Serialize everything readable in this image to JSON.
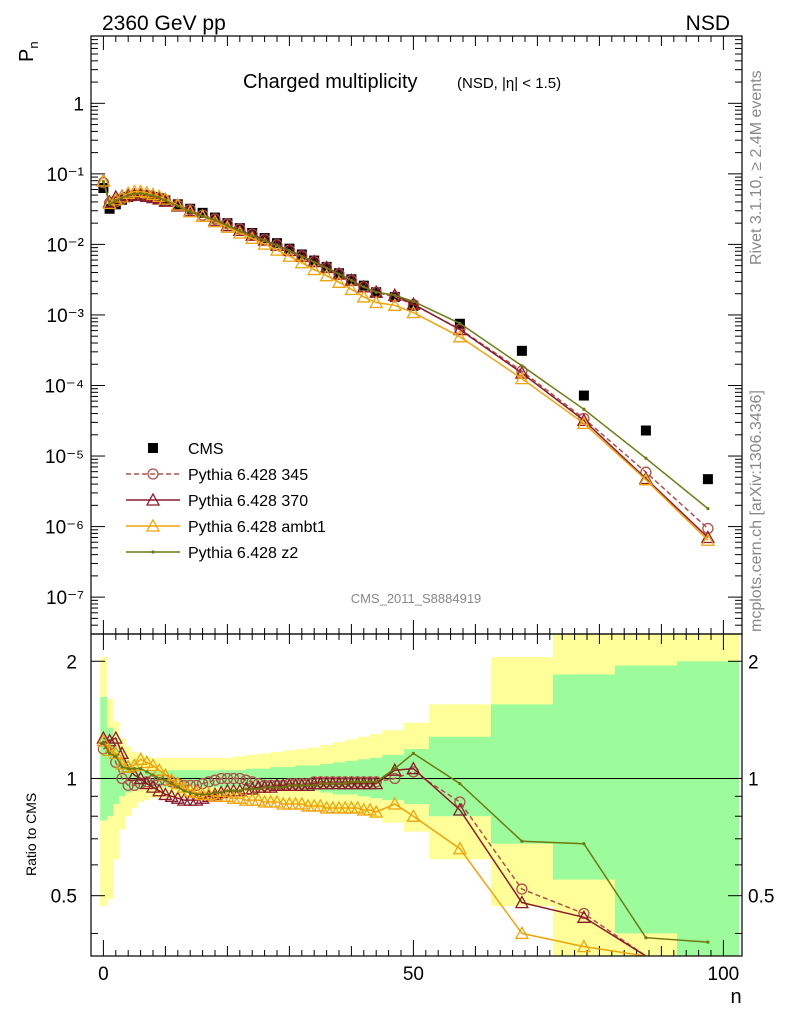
{
  "header": {
    "left": "2360 GeV pp",
    "right": "NSD"
  },
  "side_labels": {
    "rivet": "Rivet 3.1.10, ≥ 2.4M events",
    "mcplots": "mcplots.cern.ch [arXiv:1306.3436]"
  },
  "chart_data": [
    {
      "type": "scatter",
      "title": "Charged multiplicity",
      "subtitle": "(NSD, |η| < 1.5)",
      "analysis": "CMS_2011_S8884919",
      "ylabel": "P",
      "ylabel_sub": "n",
      "y_scale": "log",
      "xlim": [
        -2,
        103
      ],
      "ylim": [
        3e-08,
        9
      ],
      "y_ticks": [
        "10⁻⁷",
        "10⁻⁶",
        "10⁻⁵",
        "10⁻⁴",
        "10⁻³",
        "10⁻²",
        "10⁻¹",
        "1"
      ],
      "legend_position": "bottom-left",
      "series": [
        {
          "name": "CMS",
          "color": "#000000",
          "style": "square",
          "x": [
            0,
            1,
            2,
            3,
            4,
            5,
            6,
            7,
            8,
            9,
            10,
            12,
            14,
            16,
            18,
            20,
            22,
            24,
            26,
            28,
            30,
            32,
            34,
            36,
            38,
            40,
            42,
            44,
            47,
            50,
            57.5,
            67.5,
            77.5,
            87.5,
            97.5
          ],
          "y": [
            0.063,
            0.032,
            0.037,
            0.043,
            0.047,
            0.049,
            0.05,
            0.049,
            0.047,
            0.045,
            0.042,
            0.037,
            0.032,
            0.028,
            0.024,
            0.02,
            0.017,
            0.0145,
            0.0123,
            0.0104,
            0.0087,
            0.0072,
            0.0059,
            0.0048,
            0.0039,
            0.0032,
            0.0026,
            0.0021,
            0.0018,
            0.00135,
            0.00075,
            0.00031,
            7.2e-05,
            2.3e-05,
            4.7e-06
          ]
        },
        {
          "name": "Pythia 6.428 345",
          "color": "#b0504a",
          "style": "circle-dashed",
          "x": [
            0,
            1,
            2,
            3,
            4,
            5,
            6,
            7,
            8,
            9,
            10,
            12,
            14,
            16,
            18,
            20,
            22,
            24,
            26,
            28,
            30,
            32,
            34,
            36,
            38,
            40,
            42,
            44,
            47,
            50,
            57.5,
            67.5,
            77.5,
            87.5,
            97.5
          ],
          "y": [
            0.075,
            0.039,
            0.04,
            0.044,
            0.047,
            0.049,
            0.05,
            0.049,
            0.047,
            0.045,
            0.042,
            0.036,
            0.031,
            0.026,
            0.023,
            0.0195,
            0.0166,
            0.014,
            0.0118,
            0.0099,
            0.0083,
            0.0069,
            0.0057,
            0.0047,
            0.0038,
            0.0031,
            0.0025,
            0.0021,
            0.0018,
            0.0014,
            0.00063,
            0.00016,
            3.4e-05,
            5.9e-06,
            9.4e-07
          ]
        },
        {
          "name": "Pythia 6.428 370",
          "color": "#8b1a2b",
          "style": "triangle-solid",
          "x": [
            0,
            1,
            2,
            3,
            4,
            5,
            6,
            7,
            8,
            9,
            10,
            12,
            14,
            16,
            18,
            20,
            22,
            24,
            26,
            28,
            30,
            32,
            34,
            36,
            38,
            40,
            42,
            44,
            47,
            50,
            57.5,
            67.5,
            77.5,
            87.5,
            97.5
          ],
          "y": [
            0.08,
            0.04,
            0.047,
            0.048,
            0.05,
            0.05,
            0.05,
            0.048,
            0.046,
            0.044,
            0.041,
            0.035,
            0.03,
            0.025,
            0.022,
            0.0185,
            0.0158,
            0.0135,
            0.0115,
            0.0097,
            0.0082,
            0.0068,
            0.0057,
            0.0047,
            0.0038,
            0.0031,
            0.0025,
            0.0021,
            0.0019,
            0.00142,
            0.00062,
            0.00015,
            3.2e-05,
            4.8e-06,
            7e-07
          ]
        },
        {
          "name": "Pythia 6.428 ambt1",
          "color": "#f0a30a",
          "style": "triangle-solid",
          "x": [
            0,
            1,
            2,
            3,
            4,
            5,
            6,
            7,
            8,
            9,
            10,
            12,
            14,
            16,
            18,
            20,
            22,
            24,
            26,
            28,
            30,
            32,
            34,
            36,
            38,
            40,
            42,
            44,
            47,
            50,
            57.5,
            67.5,
            77.5,
            87.5,
            97.5
          ],
          "y": [
            0.079,
            0.038,
            0.043,
            0.047,
            0.053,
            0.056,
            0.056,
            0.054,
            0.051,
            0.048,
            0.044,
            0.036,
            0.029,
            0.025,
            0.021,
            0.0175,
            0.0145,
            0.0122,
            0.0101,
            0.0083,
            0.0068,
            0.0055,
            0.0044,
            0.0036,
            0.0029,
            0.0023,
            0.0018,
            0.0015,
            0.00137,
            0.00108,
            0.00049,
            0.000125,
            2.9e-05,
            4.6e-06,
            6.4e-07
          ]
        },
        {
          "name": "Pythia 6.428 z2",
          "color": "#6e7a10",
          "style": "dot",
          "x": [
            0,
            1,
            2,
            3,
            4,
            5,
            6,
            7,
            8,
            9,
            10,
            12,
            14,
            16,
            18,
            20,
            22,
            24,
            26,
            28,
            30,
            32,
            34,
            36,
            38,
            40,
            42,
            44,
            47,
            50,
            57.5,
            67.5,
            77.5,
            87.5,
            97.5
          ],
          "y": [
            0.078,
            0.037,
            0.042,
            0.046,
            0.05,
            0.052,
            0.053,
            0.051,
            0.049,
            0.046,
            0.042,
            0.035,
            0.029,
            0.025,
            0.022,
            0.0184,
            0.0155,
            0.0132,
            0.0113,
            0.0096,
            0.0081,
            0.0068,
            0.0056,
            0.0046,
            0.0038,
            0.0031,
            0.0025,
            0.0021,
            0.0019,
            0.00155,
            0.00076,
            0.00019,
            4.6e-05,
            9.3e-06,
            1.8e-06
          ]
        }
      ]
    },
    {
      "type": "line",
      "ylabel": "Ratio to CMS",
      "xlabel": "n",
      "xlim": [
        -2,
        103
      ],
      "ylim": [
        0.35,
        2.35
      ],
      "y_scale": "log",
      "x_ticks": [
        "0",
        "50",
        "100"
      ],
      "y_ticks": [
        "0.5",
        "1",
        "2"
      ],
      "reference_line": 1,
      "uncertainty_bands": {
        "edges": [
          -0.5,
          0.5,
          1.5,
          2.5,
          3.5,
          4.5,
          5.5,
          6.5,
          7.5,
          8.5,
          9.5,
          11,
          13,
          15,
          17,
          19,
          21,
          23,
          25,
          27,
          29,
          31,
          33,
          35,
          37,
          39,
          41,
          43,
          45,
          48.5,
          52.5,
          62.5,
          72.5,
          82.5,
          92.5,
          102.5
        ],
        "outer_low": [
          0.47,
          0.49,
          0.62,
          0.74,
          0.8,
          0.84,
          0.87,
          0.88,
          0.89,
          0.89,
          0.89,
          0.89,
          0.89,
          0.89,
          0.89,
          0.89,
          0.89,
          0.89,
          0.88,
          0.87,
          0.86,
          0.85,
          0.84,
          0.83,
          0.82,
          0.82,
          0.81,
          0.79,
          0.77,
          0.73,
          0.62,
          0.47,
          0.3,
          0.3,
          0.3
        ],
        "outer_high": [
          2.05,
          1.6,
          1.4,
          1.27,
          1.21,
          1.17,
          1.15,
          1.14,
          1.13,
          1.13,
          1.13,
          1.13,
          1.13,
          1.13,
          1.13,
          1.13,
          1.14,
          1.15,
          1.16,
          1.17,
          1.18,
          1.19,
          1.2,
          1.22,
          1.24,
          1.26,
          1.28,
          1.3,
          1.33,
          1.39,
          1.55,
          2.05,
          2.4,
          2.4,
          2.4
        ],
        "inner_low": [
          0.78,
          0.8,
          0.86,
          0.9,
          0.92,
          0.93,
          0.94,
          0.95,
          0.95,
          0.95,
          0.95,
          0.95,
          0.95,
          0.95,
          0.95,
          0.95,
          0.95,
          0.95,
          0.94,
          0.94,
          0.94,
          0.93,
          0.93,
          0.92,
          0.91,
          0.91,
          0.9,
          0.89,
          0.88,
          0.86,
          0.8,
          0.68,
          0.55,
          0.4,
          0.3
        ],
        "inner_high": [
          1.62,
          1.35,
          1.2,
          1.13,
          1.09,
          1.07,
          1.06,
          1.05,
          1.05,
          1.05,
          1.05,
          1.05,
          1.05,
          1.05,
          1.05,
          1.05,
          1.05,
          1.06,
          1.06,
          1.07,
          1.07,
          1.08,
          1.08,
          1.09,
          1.1,
          1.11,
          1.12,
          1.13,
          1.15,
          1.19,
          1.28,
          1.55,
          1.85,
          1.95,
          2.0
        ]
      },
      "series": [
        {
          "name": "Pythia 6.428 345",
          "color": "#b0504a",
          "style": "circle-dashed",
          "x": [
            0,
            1,
            2,
            3,
            4,
            5,
            6,
            7,
            8,
            9,
            10,
            11,
            12,
            13,
            14,
            15,
            16,
            17,
            18,
            19,
            20,
            21,
            22,
            23,
            24,
            25,
            26,
            27,
            28,
            29,
            30,
            31,
            32,
            33,
            34,
            35,
            36,
            37,
            38,
            39,
            40,
            41,
            42,
            43,
            44,
            47,
            50,
            57.5,
            67.5,
            77.5,
            87.5
          ],
          "y": [
            1.19,
            1.22,
            1.1,
            1.0,
            0.96,
            0.96,
            0.97,
            0.98,
            0.99,
            0.99,
            0.99,
            0.98,
            0.97,
            0.96,
            0.96,
            0.96,
            0.97,
            0.98,
            0.99,
            1.0,
            1.0,
            1.0,
            1.0,
            0.99,
            0.98,
            0.97,
            0.96,
            0.96,
            0.96,
            0.96,
            0.97,
            0.97,
            0.97,
            0.97,
            0.98,
            0.98,
            0.98,
            0.98,
            0.98,
            0.98,
            0.98,
            0.98,
            0.98,
            0.98,
            0.98,
            1.0,
            1.04,
            0.87,
            0.52,
            0.45,
            0.28
          ]
        },
        {
          "name": "Pythia 6.428 370",
          "color": "#8b1a2b",
          "style": "triangle-solid",
          "x": [
            0,
            1,
            2,
            3,
            4,
            5,
            6,
            7,
            8,
            9,
            10,
            11,
            12,
            13,
            14,
            15,
            16,
            17,
            18,
            19,
            20,
            21,
            22,
            23,
            24,
            25,
            26,
            27,
            28,
            29,
            30,
            31,
            32,
            33,
            34,
            35,
            36,
            37,
            38,
            39,
            40,
            41,
            42,
            43,
            44,
            47,
            50,
            57.5,
            67.5,
            77.5,
            87.5
          ],
          "y": [
            1.27,
            1.25,
            1.27,
            1.16,
            1.07,
            1.02,
            1.0,
            0.97,
            0.95,
            0.93,
            0.91,
            0.9,
            0.89,
            0.88,
            0.88,
            0.88,
            0.89,
            0.9,
            0.91,
            0.92,
            0.93,
            0.93,
            0.93,
            0.94,
            0.94,
            0.95,
            0.95,
            0.95,
            0.96,
            0.96,
            0.96,
            0.96,
            0.96,
            0.96,
            0.97,
            0.97,
            0.97,
            0.97,
            0.97,
            0.97,
            0.97,
            0.97,
            0.97,
            0.97,
            0.97,
            1.05,
            1.06,
            0.83,
            0.48,
            0.44,
            0.2
          ]
        },
        {
          "name": "Pythia 6.428 ambt1",
          "color": "#f0a30a",
          "style": "triangle-solid",
          "x": [
            0,
            1,
            2,
            3,
            4,
            5,
            6,
            7,
            8,
            9,
            10,
            11,
            12,
            13,
            14,
            15,
            16,
            17,
            18,
            19,
            20,
            21,
            22,
            23,
            24,
            25,
            26,
            27,
            28,
            29,
            30,
            31,
            32,
            33,
            34,
            35,
            36,
            37,
            38,
            39,
            40,
            41,
            42,
            43,
            44,
            47,
            50,
            57.5,
            67.5,
            77.5,
            87.5
          ],
          "y": [
            1.25,
            1.18,
            1.16,
            1.09,
            1.07,
            1.08,
            1.12,
            1.1,
            1.08,
            1.05,
            1.02,
            0.99,
            0.97,
            0.95,
            0.93,
            0.92,
            0.91,
            0.91,
            0.9,
            0.9,
            0.9,
            0.89,
            0.89,
            0.88,
            0.88,
            0.88,
            0.87,
            0.87,
            0.87,
            0.86,
            0.86,
            0.86,
            0.86,
            0.85,
            0.85,
            0.85,
            0.84,
            0.84,
            0.84,
            0.84,
            0.84,
            0.84,
            0.83,
            0.83,
            0.82,
            0.86,
            0.8,
            0.66,
            0.4,
            0.37,
            0.2
          ]
        },
        {
          "name": "Pythia 6.428 z2",
          "color": "#6e7a10",
          "style": "dot",
          "x": [
            0,
            1,
            2,
            3,
            4,
            5,
            6,
            7,
            8,
            9,
            10,
            11,
            12,
            13,
            14,
            15,
            16,
            17,
            18,
            19,
            20,
            21,
            22,
            23,
            24,
            25,
            26,
            27,
            28,
            29,
            30,
            31,
            32,
            33,
            34,
            35,
            36,
            37,
            38,
            39,
            40,
            41,
            42,
            43,
            44,
            47,
            50,
            57.5,
            67.5,
            77.5,
            87.5,
            97.5
          ],
          "y": [
            1.24,
            1.16,
            1.14,
            1.07,
            1.06,
            1.06,
            1.06,
            1.04,
            1.02,
            1.0,
            0.99,
            0.97,
            0.95,
            0.93,
            0.92,
            0.91,
            0.91,
            0.91,
            0.92,
            0.92,
            0.93,
            0.93,
            0.93,
            0.94,
            0.94,
            0.94,
            0.95,
            0.95,
            0.95,
            0.95,
            0.96,
            0.96,
            0.96,
            0.96,
            0.96,
            0.97,
            0.97,
            0.97,
            0.97,
            0.97,
            0.98,
            0.98,
            0.98,
            0.98,
            0.98,
            1.06,
            1.16,
            0.97,
            0.69,
            0.68,
            0.39,
            0.38
          ]
        }
      ]
    }
  ]
}
